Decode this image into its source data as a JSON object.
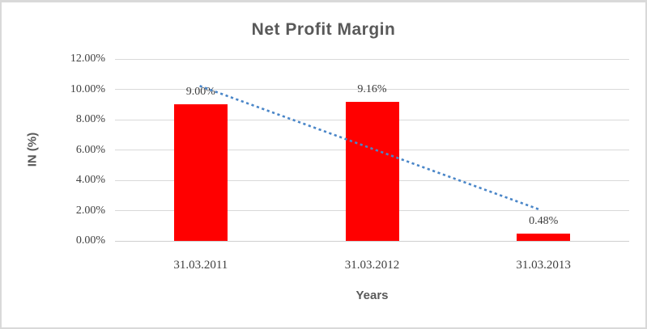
{
  "chart_data": {
    "type": "bar",
    "title": "Net Profit Margin",
    "xlabel": "Years",
    "ylabel": "IN (%)",
    "categories": [
      "31.03.2011",
      "31.03.2012",
      "31.03.2013"
    ],
    "values": [
      9.0,
      9.16,
      0.48
    ],
    "data_labels": [
      "9.00%",
      "9.16%",
      "0.48%"
    ],
    "ylim": [
      0,
      12
    ],
    "ytick_step": 2,
    "ytick_labels": [
      "0.00%",
      "2.00%",
      "4.00%",
      "6.00%",
      "8.00%",
      "10.00%",
      "12.00%"
    ],
    "grid": true,
    "legend": false,
    "bar_color": "#ff0000",
    "gridline_color": "#d9d9d9",
    "title_color": "#595959",
    "tick_color": "#404040",
    "trendline": {
      "style": "dotted",
      "color": "#4a86c8",
      "start_value": 10.2,
      "end_value": 2.05
    }
  }
}
